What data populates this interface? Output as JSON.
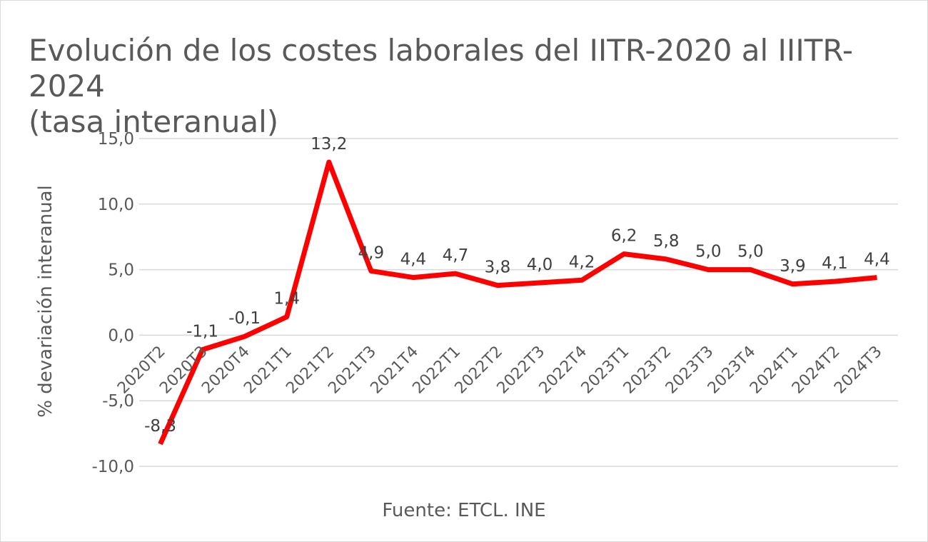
{
  "title_line1": "Evolución de los costes laborales del IITR-2020 al IIITR-2024",
  "title_line2": "(tasa interanual)",
  "source": "Fuente: ETCL. INE",
  "line_color": "#ff0000",
  "grid_color": "#d9d9d9",
  "chart_data": {
    "type": "line",
    "title": "Evolución de los costes laborales del IITR-2020 al IIITR-2024 (tasa interanual)",
    "xlabel": "",
    "ylabel": "% devariación interanual",
    "ylim": [
      -10,
      15
    ],
    "y_ticks": [
      15,
      10,
      5,
      0,
      -5,
      -10
    ],
    "y_tick_labels": [
      "15,0",
      "10,0",
      "5,0",
      "0,0",
      "-5,0",
      "-10,0"
    ],
    "grid": true,
    "legend": "none",
    "categories": [
      "2020T2",
      "2020T3",
      "2020T4",
      "2021T1",
      "2021T2",
      "2021T3",
      "2021T4",
      "2022T1",
      "2022T2",
      "2022T3",
      "2022T4",
      "2023T1",
      "2023T2",
      "2023T3",
      "2023T4",
      "2024T1",
      "2024T2",
      "2024T3"
    ],
    "category_labels": [
      "2020T2",
      "2020T3",
      "2020T4",
      "2021T1",
      "2021T2",
      "2021T3",
      "2021T4",
      "2022T1",
      "2022T2",
      "2022T3",
      "2022T4",
      "2023T1",
      "2023T2",
      "2023T3",
      "2023T4",
      "2024T1",
      "2024T2",
      "2024T3"
    ],
    "series": [
      {
        "values": [
          -8.3,
          -1.1,
          -0.1,
          1.4,
          13.2,
          4.9,
          4.4,
          4.7,
          3.8,
          4.0,
          4.2,
          6.2,
          5.8,
          5.0,
          5.0,
          3.9,
          4.1,
          4.4
        ],
        "data_labels": [
          "-8,3",
          "-1,1",
          "-0,1",
          "1,4",
          "13,2",
          "4,9",
          "4,4",
          "4,7",
          "3,8",
          "4,0",
          "4,2",
          "6,2",
          "5,8",
          "5,0",
          "5,0",
          "3,9",
          "4,1",
          "4,4"
        ]
      }
    ]
  }
}
